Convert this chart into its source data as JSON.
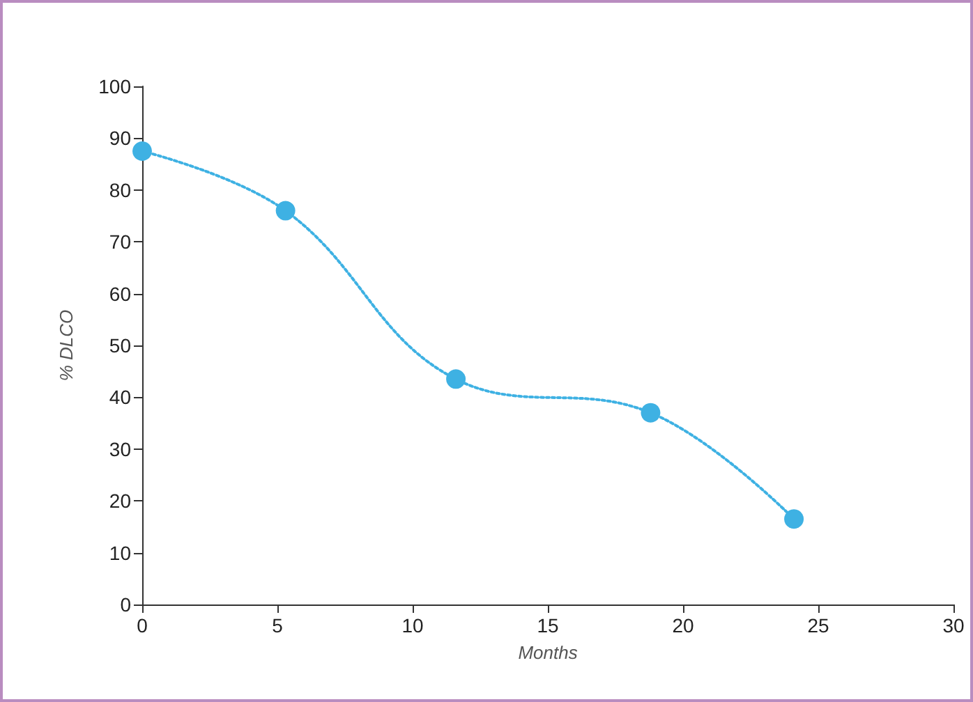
{
  "chart_data": {
    "type": "line",
    "xlabel": "Months",
    "ylabel": "% DLCO",
    "x": [
      0,
      5.3,
      11.6,
      18.8,
      24.1
    ],
    "series": [
      {
        "color": "#3eb1e3",
        "values": [
          87.5,
          76,
          43.5,
          37,
          16.5
        ]
      }
    ],
    "xlim": [
      0,
      30
    ],
    "xticks": [
      0,
      5,
      10,
      15,
      20,
      25,
      30
    ],
    "ylim": [
      0,
      100
    ],
    "yticks": [
      0,
      10,
      20,
      30,
      40,
      50,
      60,
      70,
      80,
      90,
      100
    ],
    "grid": false,
    "marker": "circle",
    "line_style": "dotted"
  }
}
